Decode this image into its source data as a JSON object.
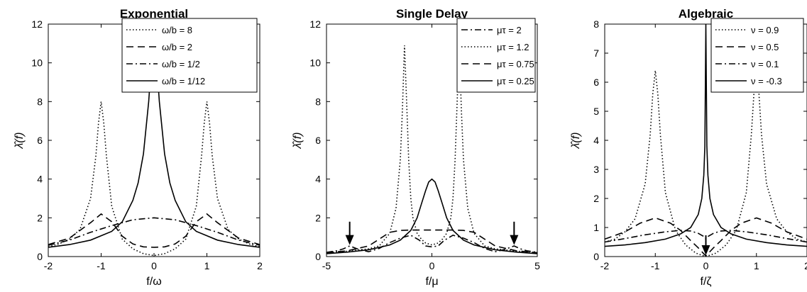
{
  "chart_data": [
    {
      "type": "line",
      "title": "Exponential",
      "xlabel": "f/ω",
      "ylabel": "λ̂(f)",
      "xlim": [
        -2,
        2
      ],
      "ylim": [
        0,
        12
      ],
      "xticks": [
        -2,
        -1,
        0,
        1,
        2
      ],
      "yticks": [
        0,
        2,
        4,
        6,
        8,
        10,
        12
      ],
      "legend_position": "top-right",
      "series": [
        {
          "name": "ω/b = 8",
          "style": "dotted",
          "x": [
            -2,
            -1.8,
            -1.6,
            -1.4,
            -1.2,
            -1.1,
            -1.05,
            -1,
            -0.95,
            -0.9,
            -0.8,
            -0.6,
            -0.4,
            -0.2,
            0,
            0.2,
            0.4,
            0.6,
            0.8,
            0.9,
            0.95,
            1,
            1.05,
            1.1,
            1.2,
            1.4,
            1.6,
            1.8,
            2
          ],
          "y": [
            0.5,
            0.65,
            0.9,
            1.4,
            3.0,
            5.2,
            6.9,
            8.0,
            6.9,
            5.2,
            2.6,
            0.9,
            0.4,
            0.15,
            0.05,
            0.15,
            0.4,
            0.9,
            2.6,
            5.2,
            6.9,
            8.0,
            6.9,
            5.2,
            3.0,
            1.4,
            0.9,
            0.65,
            0.5
          ]
        },
        {
          "name": "ω/b = 2",
          "style": "dashed",
          "x": [
            -2,
            -1.6,
            -1.2,
            -1.0,
            -0.8,
            -0.6,
            -0.4,
            -0.2,
            0,
            0.2,
            0.4,
            0.6,
            0.8,
            1.0,
            1.2,
            1.6,
            2
          ],
          "y": [
            0.62,
            0.95,
            1.75,
            2.2,
            1.8,
            1.05,
            0.65,
            0.5,
            0.48,
            0.5,
            0.65,
            1.05,
            1.8,
            2.2,
            1.75,
            0.95,
            0.62
          ]
        },
        {
          "name": "ω/b = 1/2",
          "style": "dashdot",
          "x": [
            -2,
            -1.6,
            -1.2,
            -0.8,
            -0.4,
            0,
            0.4,
            0.8,
            1.2,
            1.6,
            2
          ],
          "y": [
            0.58,
            0.85,
            1.25,
            1.6,
            1.9,
            2.0,
            1.9,
            1.6,
            1.25,
            0.85,
            0.58
          ]
        },
        {
          "name": "ω/b = 1/12",
          "style": "solid",
          "x": [
            -2,
            -1.6,
            -1.2,
            -0.8,
            -0.6,
            -0.4,
            -0.3,
            -0.2,
            -0.1,
            -0.05,
            0,
            0.05,
            0.1,
            0.2,
            0.3,
            0.4,
            0.6,
            0.8,
            1.2,
            1.6,
            2
          ],
          "y": [
            0.48,
            0.62,
            0.85,
            1.3,
            1.8,
            2.9,
            3.8,
            5.3,
            8.0,
            10.0,
            12.0,
            10.0,
            8.0,
            5.3,
            3.8,
            2.9,
            1.8,
            1.3,
            0.85,
            0.62,
            0.48
          ]
        }
      ]
    },
    {
      "type": "line",
      "title": "Single Delay",
      "xlabel": "f/μ",
      "ylabel": "λ̂(f)",
      "xlim": [
        -5,
        5
      ],
      "ylim": [
        0,
        12
      ],
      "xticks": [
        -5,
        0,
        5
      ],
      "yticks": [
        0,
        2,
        4,
        6,
        8,
        10,
        12
      ],
      "legend_position": "top-right",
      "arrows_at_x": [
        -3.9,
        3.9
      ],
      "series": [
        {
          "name": "μτ = 2",
          "style": "dashdot",
          "x": [
            -5,
            -4.5,
            -4.2,
            -3.9,
            -3.5,
            -3.0,
            -2.5,
            -2.0,
            -1.5,
            -1.0,
            -0.6,
            -0.3,
            0,
            0.3,
            0.6,
            1.0,
            1.5,
            2.0,
            2.5,
            3.0,
            3.5,
            3.9,
            4.2,
            4.5,
            5
          ],
          "y": [
            0.22,
            0.3,
            0.4,
            0.55,
            0.38,
            0.25,
            0.42,
            0.72,
            0.95,
            1.1,
            0.85,
            0.55,
            0.5,
            0.55,
            0.85,
            1.1,
            0.95,
            0.72,
            0.42,
            0.25,
            0.38,
            0.55,
            0.4,
            0.3,
            0.22
          ]
        },
        {
          "name": "μτ = 1.2",
          "style": "dotted",
          "x": [
            -5,
            -4,
            -3,
            -2.5,
            -2,
            -1.7,
            -1.5,
            -1.4,
            -1.3,
            -1.2,
            -1.1,
            -1.0,
            -0.9,
            -0.7,
            -0.5,
            -0.3,
            0,
            0.3,
            0.5,
            0.7,
            0.9,
            1.0,
            1.1,
            1.2,
            1.3,
            1.4,
            1.5,
            1.7,
            2,
            2.5,
            3,
            4,
            5
          ],
          "y": [
            0.2,
            0.28,
            0.4,
            0.55,
            1.2,
            2.5,
            5.0,
            7.5,
            10.9,
            8.0,
            5.0,
            3.0,
            2.0,
            1.2,
            0.9,
            0.7,
            0.6,
            0.7,
            0.9,
            1.2,
            2.0,
            3.0,
            5.0,
            8.0,
            10.9,
            7.5,
            5.0,
            2.5,
            1.2,
            0.55,
            0.4,
            0.28,
            0.2
          ]
        },
        {
          "name": "μτ = 0.75",
          "style": "dashed",
          "x": [
            -5,
            -4,
            -3,
            -2.5,
            -2,
            -1.5,
            -1,
            -0.5,
            0,
            0.5,
            1,
            1.5,
            2,
            2.5,
            3,
            4,
            5
          ],
          "y": [
            0.2,
            0.3,
            0.55,
            0.9,
            1.25,
            1.35,
            1.37,
            1.37,
            1.37,
            1.37,
            1.37,
            1.35,
            1.25,
            0.9,
            0.55,
            0.3,
            0.2
          ]
        },
        {
          "name": "μτ = 0.25",
          "style": "solid",
          "x": [
            -5,
            -4,
            -3,
            -2,
            -1.5,
            -1,
            -0.7,
            -0.5,
            -0.3,
            -0.15,
            0,
            0.15,
            0.3,
            0.5,
            0.7,
            1,
            1.5,
            2,
            3,
            4,
            5
          ],
          "y": [
            0.15,
            0.23,
            0.35,
            0.6,
            0.85,
            1.35,
            2.0,
            2.7,
            3.4,
            3.85,
            4.0,
            3.85,
            3.4,
            2.7,
            2.0,
            1.35,
            0.85,
            0.6,
            0.35,
            0.23,
            0.15
          ]
        }
      ]
    },
    {
      "type": "line",
      "title": "Algebraic",
      "xlabel": "f/ζ",
      "ylabel": "λ̂(f)",
      "xlim": [
        -2,
        2
      ],
      "ylim": [
        0,
        8
      ],
      "xticks": [
        -2,
        -1,
        0,
        1,
        2
      ],
      "yticks": [
        0,
        1,
        2,
        3,
        4,
        5,
        6,
        7,
        8
      ],
      "legend_position": "top-right",
      "arrows_at_x": [
        0
      ],
      "series": [
        {
          "name": "ν = 0.9",
          "style": "dotted",
          "x": [
            -2,
            -1.8,
            -1.6,
            -1.4,
            -1.2,
            -1.1,
            -1.05,
            -1,
            -0.95,
            -0.9,
            -0.8,
            -0.6,
            -0.4,
            -0.2,
            0,
            0.2,
            0.4,
            0.6,
            0.8,
            0.9,
            0.95,
            1,
            1.05,
            1.1,
            1.2,
            1.4,
            1.6,
            1.8,
            2
          ],
          "y": [
            0.5,
            0.6,
            0.85,
            1.3,
            2.5,
            4.2,
            5.6,
            6.4,
            5.6,
            4.2,
            2.2,
            0.9,
            0.4,
            0.12,
            0.0,
            0.12,
            0.4,
            0.9,
            2.2,
            4.2,
            5.6,
            6.4,
            5.6,
            4.2,
            2.5,
            1.3,
            0.85,
            0.6,
            0.5
          ]
        },
        {
          "name": "ν = 0.5",
          "style": "dashed",
          "x": [
            -2,
            -1.6,
            -1.3,
            -1.0,
            -0.7,
            -0.5,
            -0.3,
            -0.15,
            0,
            0.15,
            0.3,
            0.5,
            0.7,
            1.0,
            1.3,
            1.6,
            2
          ],
          "y": [
            0.6,
            0.85,
            1.15,
            1.33,
            1.15,
            0.9,
            0.55,
            0.3,
            0.02,
            0.3,
            0.55,
            0.9,
            1.15,
            1.33,
            1.15,
            0.85,
            0.6
          ]
        },
        {
          "name": "ν = 0.1",
          "style": "dashdot",
          "x": [
            -2,
            -1.6,
            -1.2,
            -0.8,
            -0.5,
            -0.3,
            -0.15,
            -0.05,
            0,
            0.05,
            0.15,
            0.3,
            0.5,
            0.8,
            1.2,
            1.6,
            2
          ],
          "y": [
            0.5,
            0.62,
            0.75,
            0.85,
            0.9,
            0.88,
            0.8,
            0.7,
            0.6,
            0.7,
            0.8,
            0.88,
            0.9,
            0.85,
            0.75,
            0.62,
            0.5
          ]
        },
        {
          "name": "ν = -0.3",
          "style": "solid",
          "x": [
            -2,
            -1.6,
            -1.2,
            -0.8,
            -0.5,
            -0.3,
            -0.15,
            -0.08,
            -0.04,
            -0.02,
            0,
            0.02,
            0.04,
            0.08,
            0.15,
            0.3,
            0.5,
            0.8,
            1.2,
            1.6,
            2
          ],
          "y": [
            0.35,
            0.4,
            0.48,
            0.6,
            0.78,
            1.0,
            1.45,
            2.0,
            2.8,
            3.8,
            8.0,
            3.8,
            2.8,
            2.0,
            1.45,
            1.0,
            0.78,
            0.6,
            0.48,
            0.4,
            0.35
          ]
        }
      ]
    }
  ]
}
